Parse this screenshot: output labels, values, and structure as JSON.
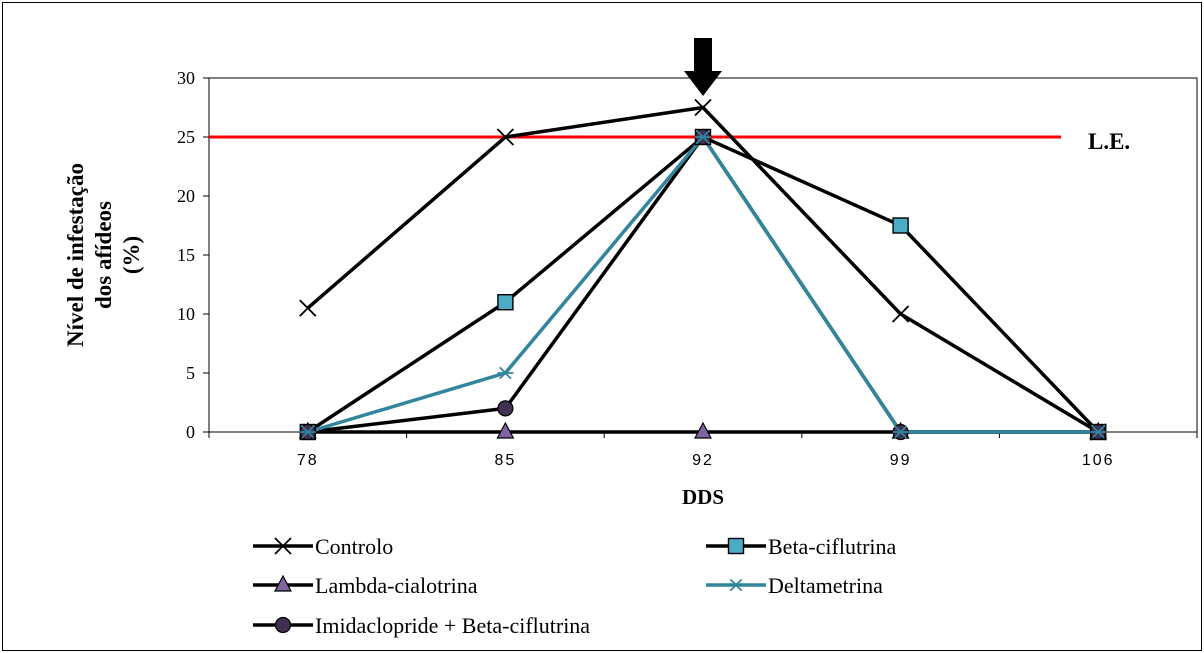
{
  "chart_data": {
    "type": "line",
    "categories": [
      "78",
      "85",
      "92",
      "99",
      "106"
    ],
    "xlabel": "DDS",
    "ylabel_lines": [
      "Nível de infestação",
      "dos afídeos",
      "(%)"
    ],
    "ylim": [
      0,
      30
    ],
    "yticks": [
      "0",
      "5",
      "10",
      "15",
      "20",
      "25",
      "30"
    ],
    "grid": false,
    "legend_position": "bottom",
    "threshold": {
      "label": "L.E.",
      "value": 25,
      "color": "#ff0000"
    },
    "arrow_at_category": "92",
    "series": [
      {
        "name": "Controlo",
        "values": [
          10.5,
          25,
          27.5,
          10,
          0
        ],
        "color": "#000000",
        "marker": "x"
      },
      {
        "name": "Beta-ciflutrina",
        "values": [
          0,
          11,
          25,
          17.5,
          0
        ],
        "color": "#000000",
        "marker": "square",
        "marker_color": "#4bacc6"
      },
      {
        "name": "Lambda-cialotrina",
        "values": [
          0,
          0,
          0,
          0,
          0
        ],
        "color": "#000000",
        "marker": "triangle",
        "marker_color": "#8064a2"
      },
      {
        "name": "Deltametrina",
        "values": [
          0,
          5,
          25,
          0,
          0
        ],
        "color": "#31859c",
        "marker": "star"
      },
      {
        "name": "Imidaclopride + Beta-ciflutrina",
        "values": [
          0,
          2,
          25,
          0,
          0
        ],
        "color": "#000000",
        "marker": "circle",
        "marker_color": "#403152"
      }
    ]
  }
}
